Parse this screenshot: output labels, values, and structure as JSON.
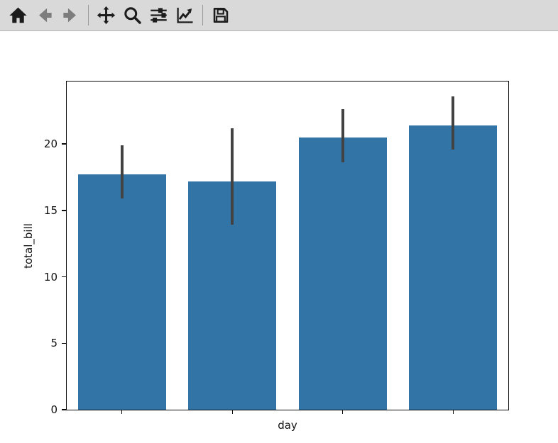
{
  "window": {
    "background": "#ffffff"
  },
  "toolbar": {
    "background": "#d9d9d9",
    "icon_color": "#1c1c1c",
    "nav_arrow_color": "#7d7d7d",
    "items": [
      "home",
      "back",
      "forward",
      "separator",
      "pan",
      "zoom-to-rect",
      "configure-subplots",
      "edit-parameters",
      "separator",
      "save"
    ]
  },
  "chart_data": {
    "type": "bar",
    "xlabel": "day",
    "ylabel": "total_bill",
    "categories": [
      "",
      "",
      "",
      ""
    ],
    "values": [
      17.7,
      17.2,
      20.5,
      21.4
    ],
    "error_low": [
      15.9,
      13.9,
      18.6,
      19.6
    ],
    "error_high": [
      19.9,
      21.2,
      22.6,
      23.6
    ],
    "yticks": [
      0,
      5,
      10,
      15,
      20
    ],
    "ylim": [
      0,
      24.7
    ],
    "bar_color": "#3274a5",
    "error_color": "#424242",
    "bar_width_frac": 0.8,
    "grid": false,
    "x_tick_labels_visible": false
  }
}
